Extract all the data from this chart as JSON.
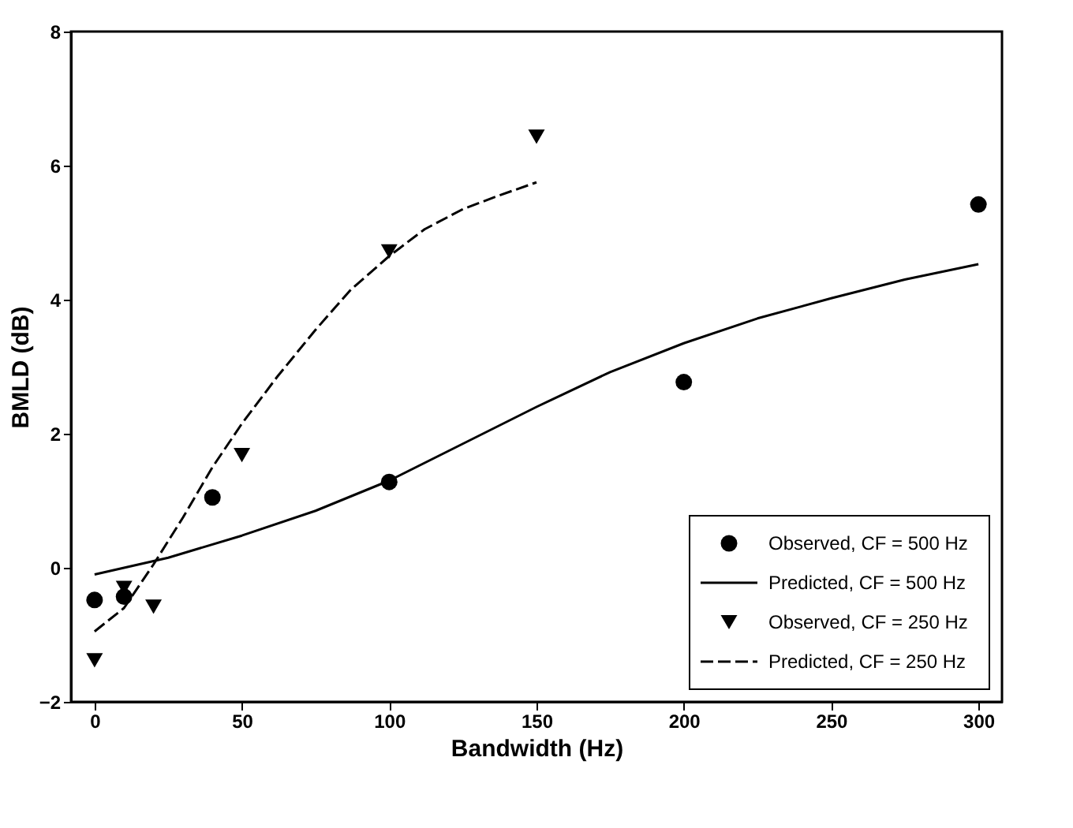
{
  "chart_data": {
    "type": "scatter",
    "xlabel": "Bandwidth (Hz)",
    "ylabel": "BMLD (dB)",
    "xlim": [
      -8,
      308
    ],
    "ylim": [
      -2,
      8
    ],
    "xticks": [
      0,
      50,
      100,
      150,
      200,
      250,
      300
    ],
    "yticks": [
      -2,
      0,
      2,
      4,
      6,
      8
    ],
    "grid": false,
    "legend": "bottom right",
    "series": [
      {
        "name": "Observed, CF = 500 Hz",
        "marker": "circle",
        "color": "#000000",
        "x": [
          0,
          10,
          40,
          100,
          200,
          300
        ],
        "values": [
          -0.48,
          -0.43,
          1.05,
          1.28,
          2.77,
          5.42
        ]
      },
      {
        "name": "Predicted, CF = 500 Hz",
        "type": "line",
        "line_style": "solid",
        "color": "#000000",
        "x": [
          0,
          25,
          50,
          75,
          100,
          125,
          150,
          175,
          200,
          225,
          250,
          275,
          300
        ],
        "values": [
          -0.1,
          0.15,
          0.48,
          0.85,
          1.3,
          1.85,
          2.4,
          2.92,
          3.35,
          3.72,
          4.02,
          4.3,
          4.53
        ]
      },
      {
        "name": "Observed, CF = 250 Hz",
        "marker": "triangle",
        "color": "#000000",
        "x": [
          0,
          10,
          20,
          50,
          100,
          150
        ],
        "values": [
          -1.38,
          -0.3,
          -0.58,
          1.68,
          4.72,
          6.43
        ]
      },
      {
        "name": "Predicted, CF = 250 Hz",
        "type": "line",
        "line_style": "dashed",
        "color": "#000000",
        "x": [
          0,
          10,
          20,
          30,
          40,
          50,
          62,
          75,
          87,
          100,
          112,
          125,
          137,
          150
        ],
        "values": [
          -0.95,
          -0.6,
          0.05,
          0.75,
          1.5,
          2.15,
          2.85,
          3.55,
          4.15,
          4.65,
          5.05,
          5.35,
          5.55,
          5.75
        ]
      }
    ]
  }
}
